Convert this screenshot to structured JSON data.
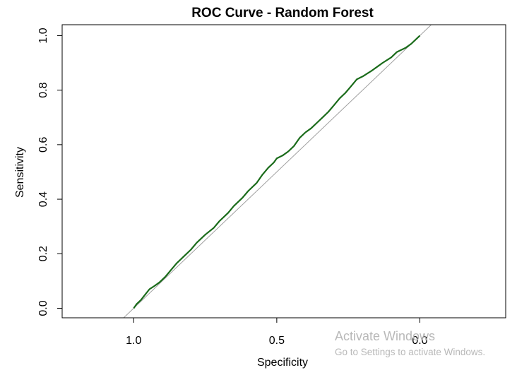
{
  "chart_data": {
    "type": "line",
    "title": "ROC Curve - Random Forest",
    "xlabel": "Specificity",
    "ylabel": "Sensitivity",
    "x_reversed": true,
    "xlim": [
      1.25,
      -0.3
    ],
    "ylim": [
      -0.035,
      1.04
    ],
    "xticks": [
      1.0,
      0.5,
      0.0
    ],
    "xtick_labels": [
      "1.0",
      "0.5",
      "0.0"
    ],
    "yticks": [
      0.0,
      0.2,
      0.4,
      0.6,
      0.8,
      1.0
    ],
    "ytick_labels": [
      "0.0",
      "0.2",
      "0.4",
      "0.6",
      "0.8",
      "1.0"
    ],
    "grid": false,
    "legend": "none",
    "series": [
      {
        "color": "#1a6b1a",
        "x": [
          1.0,
          0.99,
          0.975,
          0.96,
          0.945,
          0.93,
          0.91,
          0.89,
          0.87,
          0.85,
          0.83,
          0.8,
          0.78,
          0.75,
          0.72,
          0.7,
          0.67,
          0.65,
          0.62,
          0.6,
          0.57,
          0.55,
          0.53,
          0.51,
          0.5,
          0.48,
          0.46,
          0.44,
          0.42,
          0.4,
          0.38,
          0.36,
          0.34,
          0.32,
          0.3,
          0.28,
          0.26,
          0.24,
          0.22,
          0.2,
          0.17,
          0.15,
          0.13,
          0.1,
          0.08,
          0.05,
          0.03,
          0.01,
          0.0
        ],
        "y": [
          0.0,
          0.015,
          0.03,
          0.05,
          0.07,
          0.08,
          0.095,
          0.115,
          0.14,
          0.165,
          0.185,
          0.215,
          0.24,
          0.27,
          0.295,
          0.32,
          0.35,
          0.375,
          0.405,
          0.43,
          0.46,
          0.49,
          0.515,
          0.535,
          0.55,
          0.56,
          0.575,
          0.595,
          0.625,
          0.645,
          0.66,
          0.68,
          0.7,
          0.72,
          0.745,
          0.77,
          0.79,
          0.815,
          0.84,
          0.85,
          0.87,
          0.885,
          0.9,
          0.92,
          0.94,
          0.955,
          0.97,
          0.99,
          1.0
        ]
      }
    ],
    "reference_line": {
      "color": "#a0a0a0",
      "from": [
        1.0,
        0.0
      ],
      "to": [
        0.0,
        1.0
      ]
    }
  },
  "watermark": {
    "title": "Activate Windows",
    "subtitle": "Go to Settings to activate Windows."
  }
}
